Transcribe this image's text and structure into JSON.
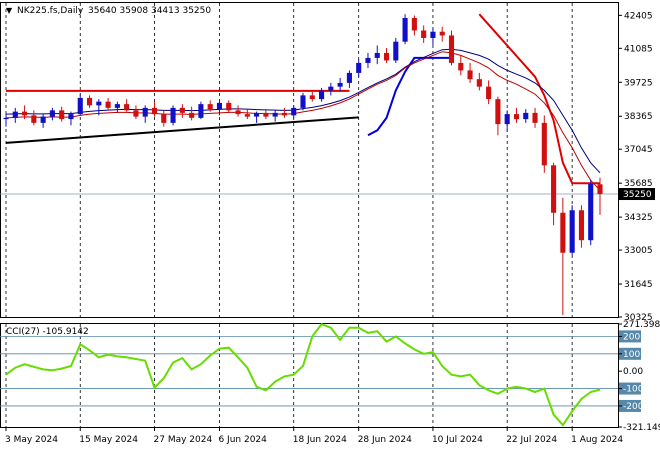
{
  "header": {
    "symbol_label": "NK225.fs,Daily",
    "ohlc_label": "35640 35908 34413 35250",
    "arrow_icon": "triangle-down-icon"
  },
  "chart_data": [
    {
      "type": "candlestick",
      "name": "price",
      "ylim": [
        30325,
        42900
      ],
      "y_ticks": [
        "42405",
        "41085",
        "39725",
        "38365",
        "37045",
        "35685",
        "34325",
        "33005",
        "31645",
        "30325"
      ],
      "y_tick_values": [
        42405,
        41085,
        39725,
        38365,
        37045,
        35685,
        34325,
        33005,
        31645,
        30325
      ],
      "x_ticks": [
        "3 May 2024",
        "15 May 2024",
        "27 May 2024",
        "6 Jun 2024",
        "18 Jun 2024",
        "28 Jun 2024",
        "10 Jul 2024",
        "22 Jul 2024",
        "1 Aug 2024"
      ],
      "x_tick_index": [
        0,
        8,
        16,
        23,
        31,
        38,
        46,
        54,
        61
      ],
      "current_price": 35250,
      "current_price_label": "35250",
      "colors": {
        "up": "#1010c8",
        "down": "#d01010",
        "ma_fast": "#c00000",
        "ma_slow": "#000080",
        "trend_black": "#000000",
        "envelope_red": "#e00000",
        "envelope_blue": "#0000e0",
        "cci": "#66dd00"
      },
      "candles": [
        [
          38250,
          38500,
          37950,
          38300
        ],
        [
          38300,
          38700,
          38100,
          38550
        ],
        [
          38550,
          38800,
          38250,
          38400
        ],
        [
          38400,
          38600,
          38000,
          38100
        ],
        [
          38100,
          38450,
          37900,
          38350
        ],
        [
          38350,
          38700,
          38200,
          38600
        ],
        [
          38600,
          38750,
          38150,
          38250
        ],
        [
          38250,
          38550,
          38000,
          38450
        ],
        [
          38450,
          39250,
          38400,
          39100
        ],
        [
          39100,
          39200,
          38700,
          38800
        ],
        [
          38800,
          39050,
          38400,
          38950
        ],
        [
          38950,
          39100,
          38600,
          38700
        ],
        [
          38700,
          38950,
          38500,
          38850
        ],
        [
          38850,
          39050,
          38550,
          38600
        ],
        [
          38600,
          38800,
          38250,
          38350
        ],
        [
          38350,
          38800,
          38100,
          38700
        ],
        [
          38700,
          38950,
          38350,
          38450
        ],
        [
          38450,
          38600,
          37950,
          38100
        ],
        [
          38100,
          38800,
          38000,
          38700
        ],
        [
          38700,
          38850,
          38300,
          38500
        ],
        [
          38500,
          38750,
          38200,
          38300
        ],
        [
          38300,
          38950,
          38250,
          38850
        ],
        [
          38850,
          39000,
          38550,
          38650
        ],
        [
          38650,
          39050,
          38400,
          38900
        ],
        [
          38900,
          39000,
          38500,
          38600
        ],
        [
          38600,
          38800,
          38350,
          38450
        ],
        [
          38450,
          38650,
          38250,
          38350
        ],
        [
          38350,
          38550,
          38100,
          38500
        ],
        [
          38500,
          38650,
          38250,
          38350
        ],
        [
          38350,
          38600,
          38150,
          38500
        ],
        [
          38500,
          38700,
          38300,
          38400
        ],
        [
          38400,
          38800,
          38300,
          38700
        ],
        [
          38700,
          39300,
          38600,
          39200
        ],
        [
          39200,
          39400,
          38950,
          39050
        ],
        [
          39050,
          39500,
          38950,
          39400
        ],
        [
          39400,
          39700,
          39200,
          39550
        ],
        [
          39550,
          39900,
          39350,
          39700
        ],
        [
          39700,
          40200,
          39500,
          40100
        ],
        [
          40100,
          40650,
          39950,
          40500
        ],
        [
          40500,
          40900,
          40300,
          40700
        ],
        [
          40700,
          41200,
          40450,
          40900
        ],
        [
          40900,
          41100,
          40500,
          40600
        ],
        [
          40600,
          41500,
          40500,
          41350
        ],
        [
          41350,
          42450,
          41250,
          42300
        ],
        [
          42300,
          42400,
          41600,
          41800
        ],
        [
          41800,
          42000,
          41300,
          41500
        ],
        [
          41500,
          41900,
          41200,
          41750
        ],
        [
          41750,
          41950,
          41350,
          41600
        ],
        [
          41600,
          41800,
          40400,
          40500
        ],
        [
          40500,
          40800,
          40000,
          40200
        ],
        [
          40200,
          40500,
          39700,
          39850
        ],
        [
          39850,
          40100,
          39400,
          39550
        ],
        [
          39550,
          39800,
          38850,
          39050
        ],
        [
          39050,
          39150,
          37600,
          38050
        ],
        [
          38050,
          38600,
          37750,
          38450
        ],
        [
          38450,
          38700,
          38100,
          38250
        ],
        [
          38250,
          38650,
          38100,
          38500
        ],
        [
          38500,
          38700,
          37900,
          38100
        ],
        [
          38100,
          38400,
          36100,
          36400
        ],
        [
          36400,
          36500,
          34000,
          34500
        ],
        [
          34500,
          35100,
          30400,
          32900
        ],
        [
          32900,
          34800,
          32800,
          34600
        ],
        [
          34600,
          34800,
          33100,
          33400
        ],
        [
          33400,
          35800,
          33200,
          35650
        ],
        [
          35640,
          35908,
          34413,
          35250
        ]
      ],
      "ma_fast": [
        38300,
        38320,
        38340,
        38330,
        38320,
        38340,
        38330,
        38330,
        38400,
        38450,
        38480,
        38500,
        38520,
        38520,
        38500,
        38500,
        38480,
        38450,
        38450,
        38450,
        38440,
        38460,
        38480,
        38500,
        38520,
        38520,
        38500,
        38480,
        38470,
        38460,
        38450,
        38470,
        38540,
        38600,
        38680,
        38780,
        38900,
        39050,
        39250,
        39450,
        39650,
        39800,
        40000,
        40300,
        40500,
        40650,
        40800,
        40950,
        40900,
        40800,
        40650,
        40500,
        40300,
        40000,
        39800,
        39650,
        39450,
        39250,
        38900,
        38400,
        37700,
        37100,
        36400,
        35800,
        35400
      ],
      "ma_slow": [
        38450,
        38460,
        38470,
        38460,
        38460,
        38470,
        38470,
        38470,
        38520,
        38560,
        38590,
        38610,
        38630,
        38640,
        38630,
        38630,
        38620,
        38600,
        38600,
        38600,
        38590,
        38600,
        38620,
        38640,
        38660,
        38660,
        38650,
        38630,
        38620,
        38610,
        38600,
        38610,
        38670,
        38720,
        38790,
        38880,
        38990,
        39130,
        39320,
        39510,
        39700,
        39860,
        40050,
        40330,
        40550,
        40720,
        40880,
        41030,
        41050,
        41000,
        40900,
        40800,
        40650,
        40400,
        40200,
        40050,
        39900,
        39700,
        39400,
        39000,
        38400,
        37800,
        37100,
        36500,
        36100
      ],
      "trend_black": {
        "x0": 0,
        "y0": 37300,
        "x1": 38,
        "y1": 38320
      },
      "envelope_red_flat": {
        "x0": 0,
        "x1": 37,
        "y": 39380
      },
      "envelope_red_desc": [
        [
          51,
          42450
        ],
        [
          57,
          39950
        ],
        [
          58,
          39200
        ],
        [
          59,
          38200
        ],
        [
          60,
          36500
        ],
        [
          61,
          35680
        ],
        [
          62,
          35680
        ],
        [
          63,
          35680
        ],
        [
          64,
          35680
        ]
      ],
      "envelope_blue": [
        [
          39,
          37600
        ],
        [
          40,
          37800
        ],
        [
          41,
          38300
        ],
        [
          42,
          39400
        ],
        [
          43,
          40150
        ],
        [
          44,
          40700
        ],
        [
          45,
          40700
        ],
        [
          46,
          40700
        ],
        [
          47,
          40700
        ],
        [
          48,
          40700
        ]
      ]
    },
    {
      "type": "line",
      "name": "cci",
      "label": "CCI(27) -105.9142",
      "ylim": [
        -321.149,
        271.3984
      ],
      "y_ticks": [
        "271.3984",
        "200",
        "100",
        "0.00",
        "-100",
        "-200",
        "-321.149"
      ],
      "y_tick_values": [
        271.3984,
        200,
        100,
        0,
        -100,
        -200,
        -321.149
      ],
      "level_lines": [
        200,
        100,
        -100,
        -200
      ],
      "values": [
        -20,
        20,
        40,
        25,
        10,
        5,
        15,
        30,
        155,
        120,
        80,
        95,
        85,
        80,
        70,
        60,
        -95,
        -40,
        50,
        75,
        10,
        40,
        90,
        130,
        135,
        80,
        20,
        -90,
        -110,
        -60,
        -30,
        -20,
        30,
        200,
        270,
        250,
        180,
        250,
        250,
        220,
        230,
        170,
        200,
        160,
        125,
        100,
        110,
        30,
        -20,
        -30,
        -20,
        -80,
        -110,
        -130,
        -100,
        -90,
        -100,
        -120,
        -100,
        -250,
        -310,
        -230,
        -160,
        -120,
        -106
      ]
    }
  ]
}
